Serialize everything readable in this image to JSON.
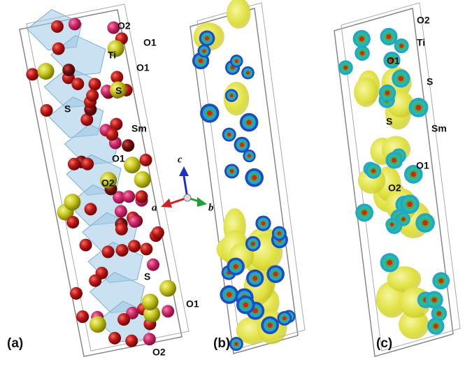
{
  "panels": [
    {
      "label": "(a)",
      "atom_labels": [
        "O2",
        "O1",
        "Ti",
        "O1",
        "S",
        "S",
        "Sm",
        "O1",
        "O2",
        "S",
        "O1",
        "O2"
      ]
    },
    {
      "label": "(b)"
    },
    {
      "label": "(c)",
      "atom_labels": [
        "O2",
        "Ti",
        "O1",
        "S",
        "S",
        "Sm",
        "O1",
        "O2"
      ]
    }
  ],
  "axes": [
    "a",
    "b",
    "c"
  ]
}
